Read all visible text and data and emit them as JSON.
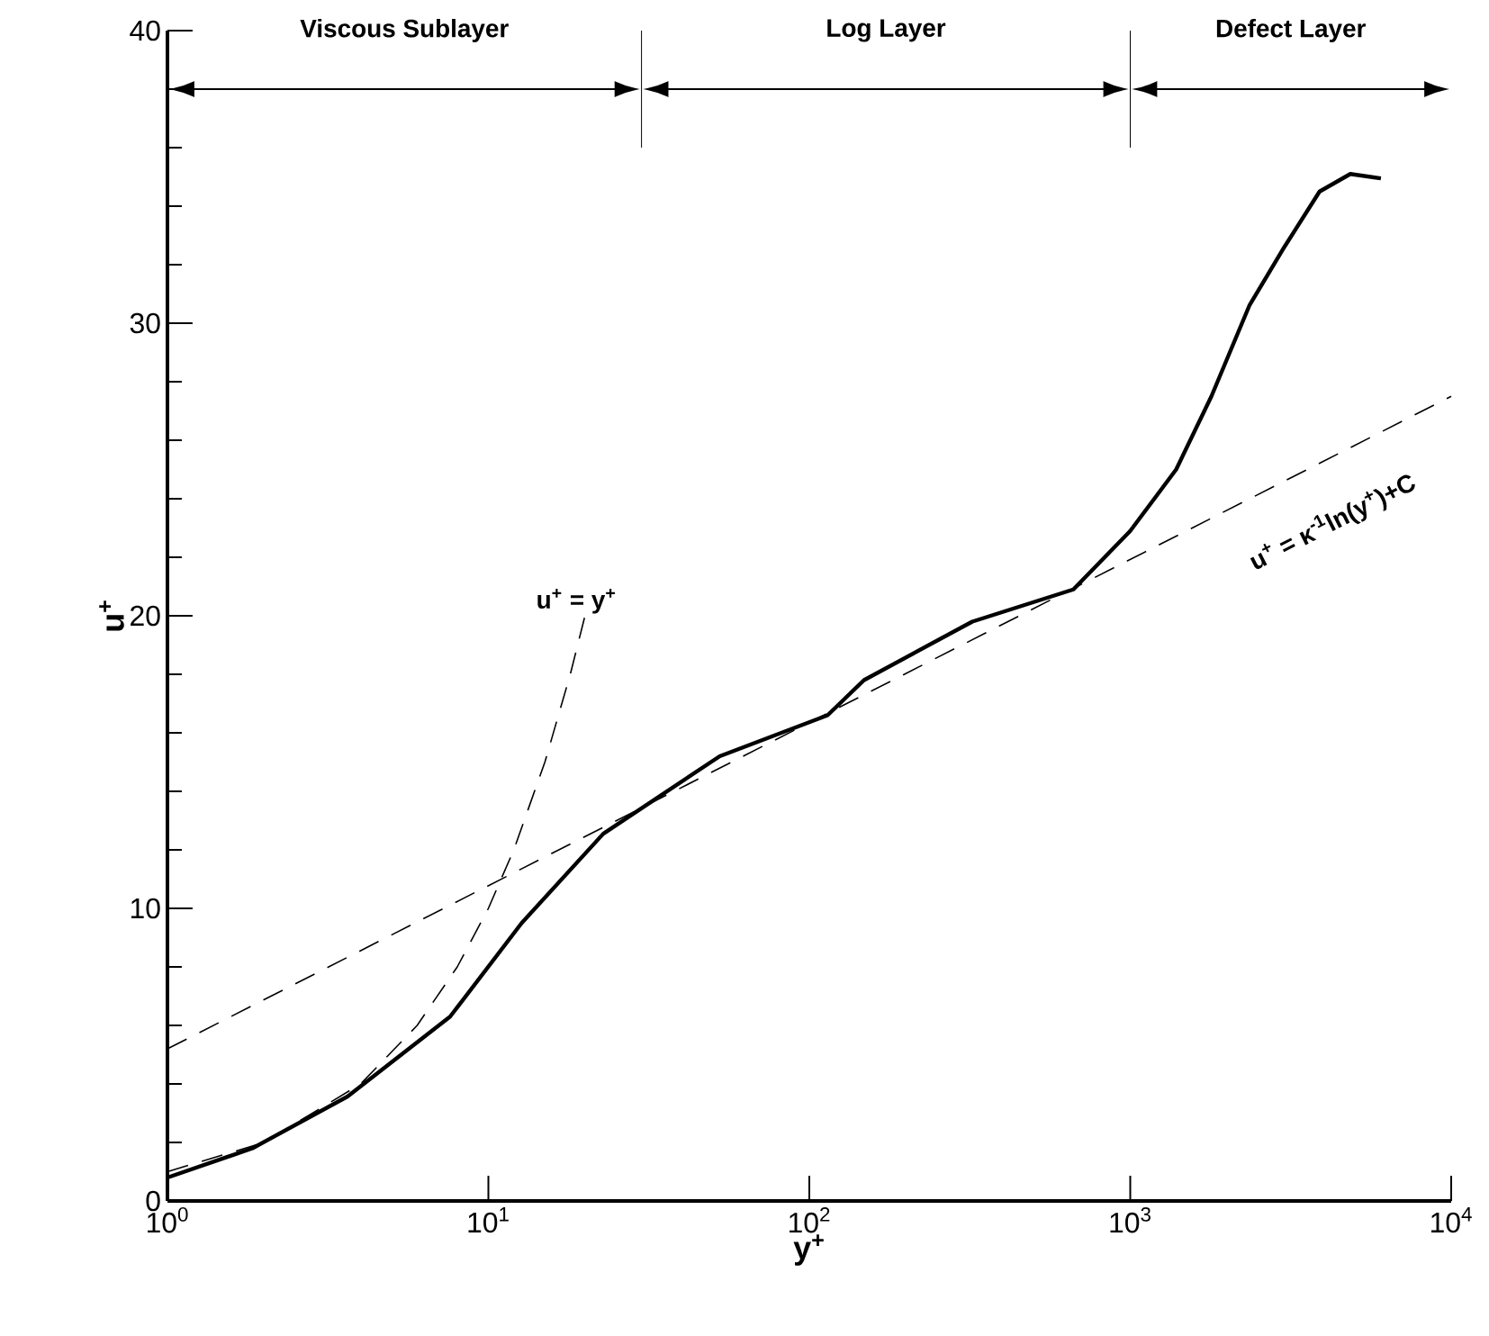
{
  "chart_data": {
    "type": "line",
    "xlabel": "y$^{+}$",
    "ylabel": "u$^{+}$",
    "log": "x",
    "xlim": [
      1,
      10000
    ],
    "ylim": [
      0,
      40
    ],
    "xticks": [
      {
        "value": 1,
        "label": "10$^{0}$"
      },
      {
        "value": 10,
        "label": "10$^{1}$"
      },
      {
        "value": 100,
        "label": "10$^{2}$"
      },
      {
        "value": 1000,
        "label": "10$^{3}$"
      },
      {
        "value": 10000,
        "label": "10$^{4}$"
      }
    ],
    "yticks": [
      0,
      10,
      20,
      30,
      40
    ],
    "series": [
      {
        "color": "#000000",
        "line_style": "solid",
        "x": [
          1,
          1.84,
          3.64,
          7.6,
          12.7,
          22.8,
          52.6,
          114,
          148,
          322,
          665,
          1000,
          1390,
          1790,
          2350,
          3020,
          3890,
          4850,
          6040
        ],
        "values": [
          0.8,
          1.8,
          3.57,
          6.3,
          9.5,
          12.55,
          15.2,
          16.6,
          17.8,
          19.8,
          20.9,
          22.9,
          25.0,
          27.5,
          30.6,
          32.6,
          34.5,
          35.1,
          34.95
        ]
      },
      {
        "color": "#000000",
        "line_style": "dashed",
        "x": [
          1,
          10000
        ],
        "values": [
          5.2,
          27.5
        ]
      },
      {
        "color": "#000000",
        "line_style": "dashed",
        "x": [
          1,
          2,
          4,
          6,
          8,
          10,
          12,
          15,
          18,
          20
        ],
        "values": [
          1,
          2,
          4,
          6,
          8,
          10,
          12,
          15,
          18,
          20
        ]
      }
    ],
    "ref_lines": [
      {
        "axis": "x",
        "value": 30
      },
      {
        "axis": "x",
        "value": 1000
      }
    ],
    "annotations": [
      "Viscous Sublayer",
      "Log Layer",
      "Defect Layer",
      "u$^{+}$ = y$^{+}$",
      "u$^{+}$ = κ$^{-1}$ln(y$^{+}$)+C"
    ]
  }
}
